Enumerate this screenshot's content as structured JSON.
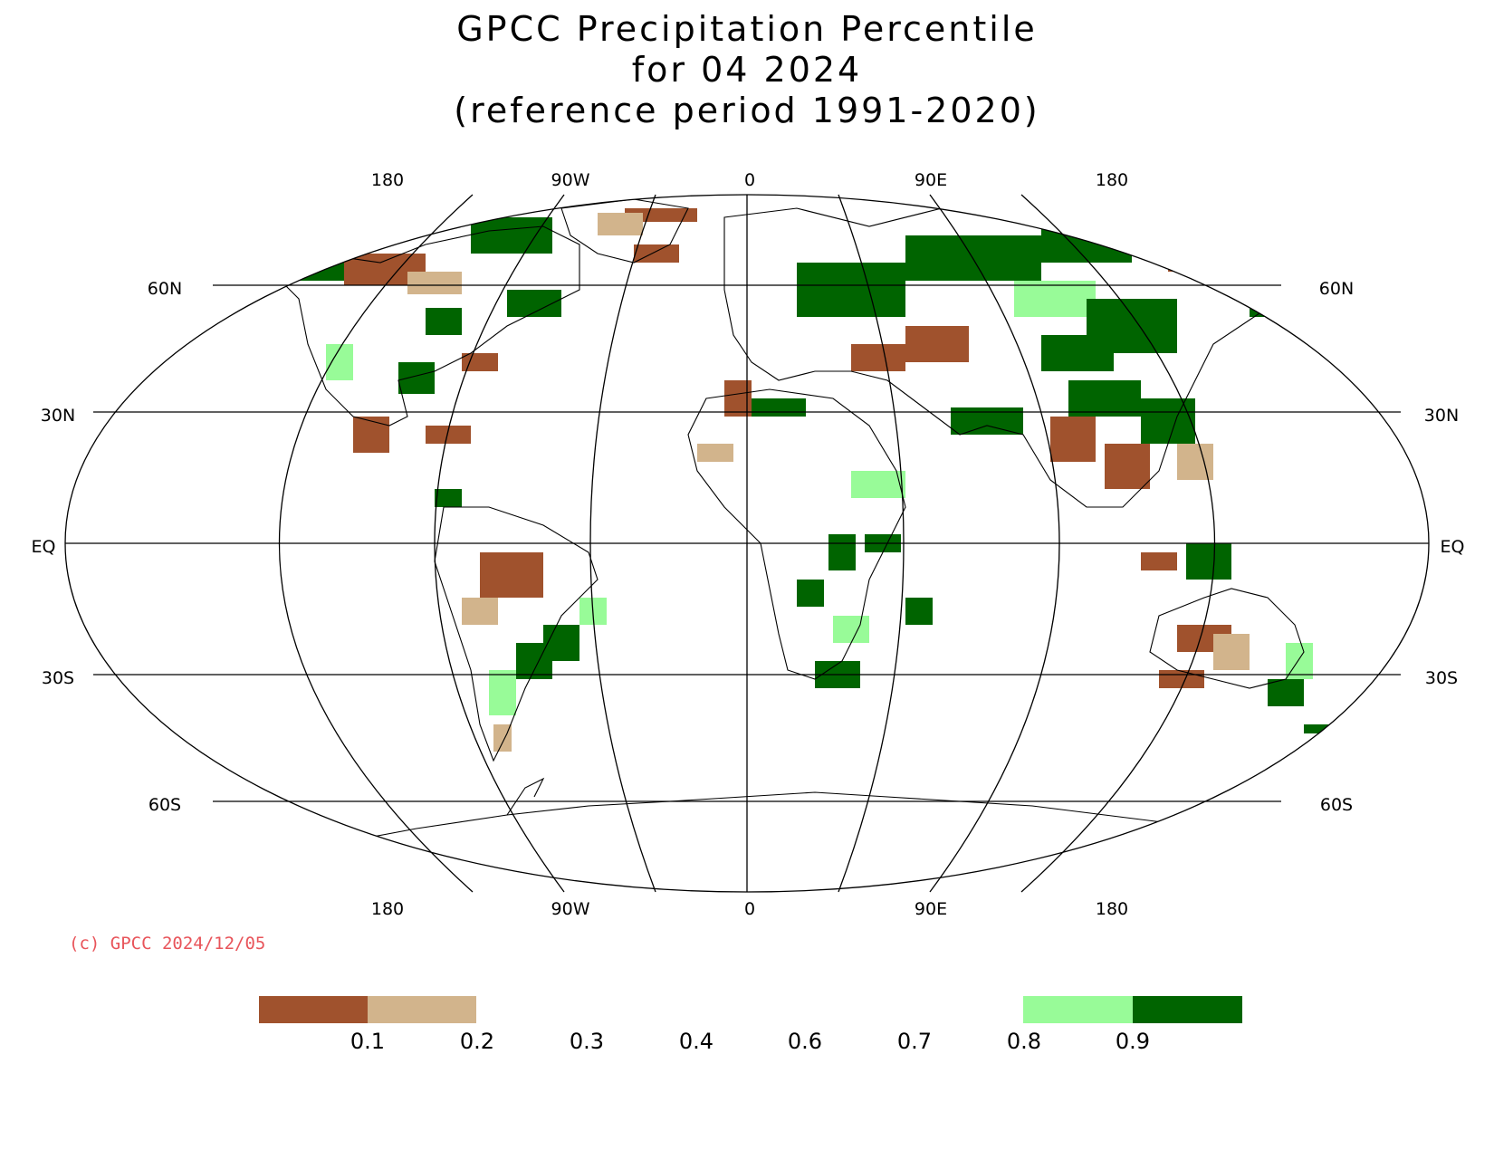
{
  "title": {
    "line1": "GPCC Precipitation Percentile",
    "line2": "for 04 2024",
    "line3": "(reference period 1991-2020)"
  },
  "longitude_labels": [
    "180",
    "90W",
    "0",
    "90E",
    "180"
  ],
  "latitude_labels": [
    "60N",
    "30N",
    "EQ",
    "30S",
    "60S"
  ],
  "credit": "(c) GPCC 2024/12/05",
  "legend": {
    "boxes": [
      {
        "color": "#a0522d",
        "class": "below 0.1"
      },
      {
        "color": "#d2b48c",
        "class": "0.1 - 0.2"
      },
      {
        "color": "#98fb98",
        "class": "0.8 - 0.9"
      },
      {
        "color": "#006400",
        "class": "above 0.9"
      }
    ],
    "ticks": [
      "0.1",
      "0.2",
      "0.3",
      "0.4",
      "0.6",
      "0.7",
      "0.8",
      "0.9"
    ]
  },
  "colors": {
    "very_dry": "#a0522d",
    "dry": "#d2b48c",
    "wet": "#98fb98",
    "very_wet": "#006400",
    "credit": "#e8545a"
  }
}
